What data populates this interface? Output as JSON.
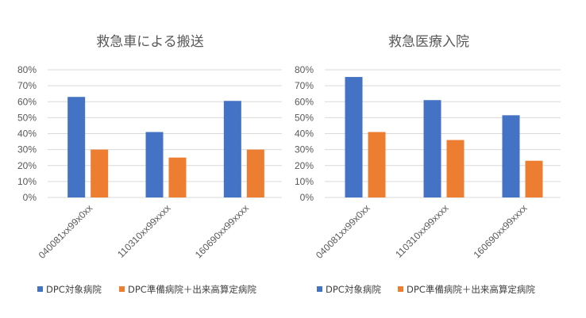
{
  "colors": {
    "series1": "#4472C4",
    "series2": "#ED7D31",
    "grid": "#D9D9D9",
    "text": "#595959"
  },
  "chart_data": [
    {
      "type": "bar",
      "title": "救急車による搬送",
      "categories": [
        "040081xx99x0xx",
        "110310xx99xxxx",
        "160690xx99xxxx"
      ],
      "yticks": [
        "0%",
        "10%",
        "20%",
        "30%",
        "40%",
        "50%",
        "60%",
        "70%",
        "80%"
      ],
      "ylim": [
        0,
        80
      ],
      "grid": true,
      "legend": "bottom",
      "series": [
        {
          "name": "DPC対象病院",
          "values": [
            63,
            41,
            60.5
          ]
        },
        {
          "name": "DPC準備病院＋出来高算定病院",
          "values": [
            30,
            25,
            30
          ]
        }
      ]
    },
    {
      "type": "bar",
      "title": "救急医療入院",
      "categories": [
        "040081xx99x0xx",
        "110310xx99xxxx",
        "160690xx99xxxx"
      ],
      "yticks": [
        "0%",
        "10%",
        "20%",
        "30%",
        "40%",
        "50%",
        "60%",
        "70%",
        "80%"
      ],
      "ylim": [
        0,
        80
      ],
      "grid": true,
      "legend": "bottom",
      "series": [
        {
          "name": "DPC対象病院",
          "values": [
            75.5,
            61,
            51.5
          ]
        },
        {
          "name": "DPC準備病院＋出来高算定病院",
          "values": [
            41,
            36,
            23
          ]
        }
      ]
    }
  ]
}
